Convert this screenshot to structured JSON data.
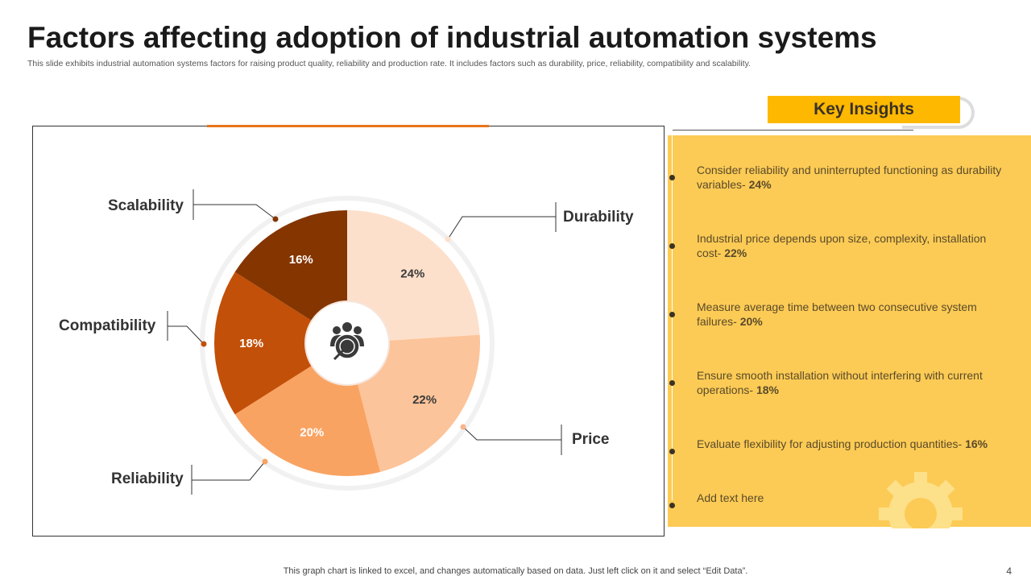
{
  "title": "Factors affecting adoption of industrial automation systems",
  "subtitle": "This slide exhibits industrial automation systems factors for raising product quality, reliability and production rate. It includes factors such as durability, price, reliability, compatibility and scalability.",
  "chart_data": {
    "type": "pie",
    "categories": [
      "Durability",
      "Price",
      "Reliability",
      "Compatibility",
      "Scalability"
    ],
    "values": [
      24,
      22,
      20,
      18,
      16
    ],
    "data_labels": [
      "24%",
      "22%",
      "20%",
      "18%",
      "16%"
    ],
    "colors": [
      "#fde0cb",
      "#fcc49a",
      "#f9a363",
      "#c25008",
      "#843500"
    ],
    "center_icon": "target-audience-icon"
  },
  "insights": {
    "heading": "Key Insights",
    "items": [
      {
        "text": "Consider reliability and uninterrupted functioning as durability variables- ",
        "value": "24%"
      },
      {
        "text": "Industrial price depends upon size, complexity, installation cost- ",
        "value": "22%"
      },
      {
        "text": "Measure average time between two consecutive system failures- ",
        "value": "20%"
      },
      {
        "text": "Ensure smooth installation without interfering with current operations- ",
        "value": "18%"
      },
      {
        "text": "Evaluate flexibility for adjusting  production quantities- ",
        "value": "16%"
      },
      {
        "text": "Add text here",
        "value": ""
      }
    ],
    "decor_icon": "gear-icon"
  },
  "footer": "This graph chart is linked to excel,  and changes automatically based on data. Just left click on it and select “Edit Data”.",
  "page_number": "4"
}
